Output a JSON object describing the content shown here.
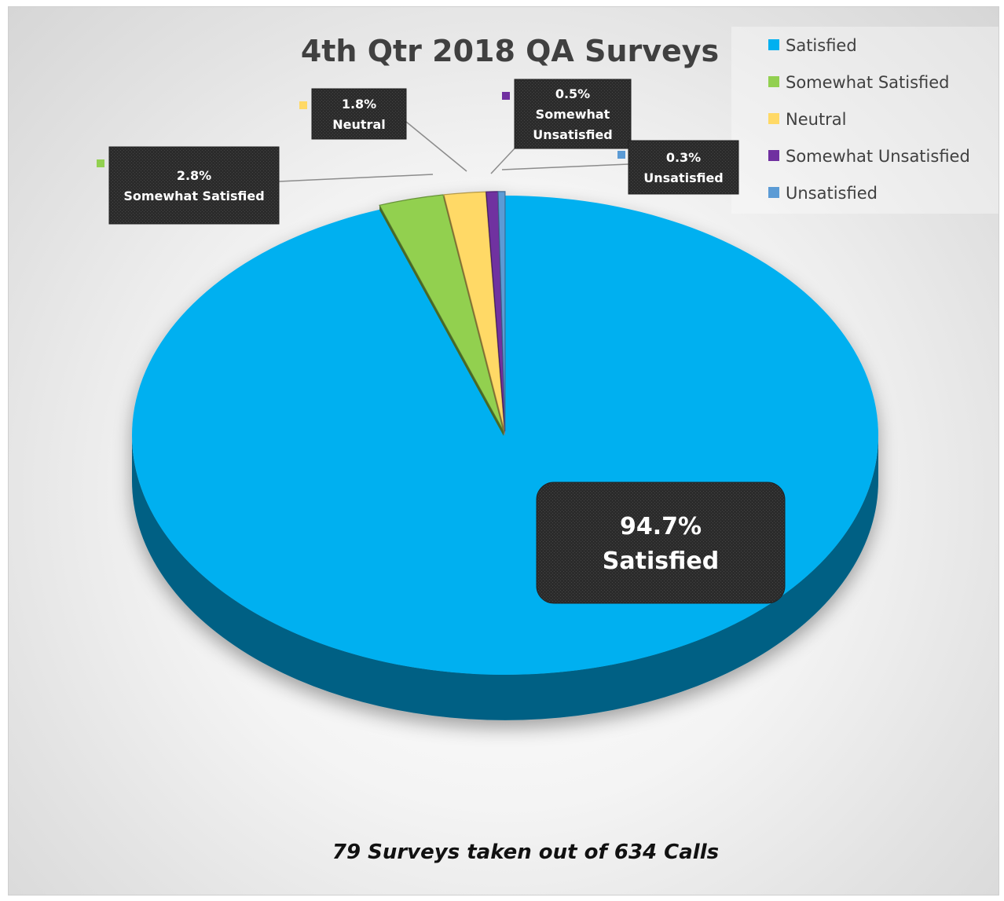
{
  "chart_data": {
    "type": "pie",
    "title": "4th Qtr 2018 QA Surveys",
    "categories": [
      "Satisfied",
      "Somewhat Satisfied",
      "Neutral",
      "Somewhat Unsatisfied",
      "Unsatisfied"
    ],
    "values": [
      94.7,
      2.8,
      1.8,
      0.5,
      0.3
    ],
    "value_unit": "%",
    "colors": [
      "#00B0F0",
      "#92D050",
      "#FFD966",
      "#7030A0",
      "#5B9BD5"
    ],
    "data_labels": [
      {
        "value": "94.7%",
        "name": "Satisfied"
      },
      {
        "value": "2.8%",
        "name": "Somewhat Satisfied"
      },
      {
        "value": "1.8%",
        "name": "Neutral"
      },
      {
        "value": "0.5%",
        "name_lines": [
          "Somewhat",
          "Unsatisfied"
        ]
      },
      {
        "value": "0.3%",
        "name": "Unsatisfied"
      }
    ],
    "legend": {
      "position": "top-right",
      "items": [
        "Satisfied",
        "Somewhat Satisfied",
        "Neutral",
        "Somewhat Unsatisfied",
        "Unsatisfied"
      ]
    },
    "style": "3d-exploded"
  },
  "footnote": "79 Surveys taken out of 634 Calls"
}
